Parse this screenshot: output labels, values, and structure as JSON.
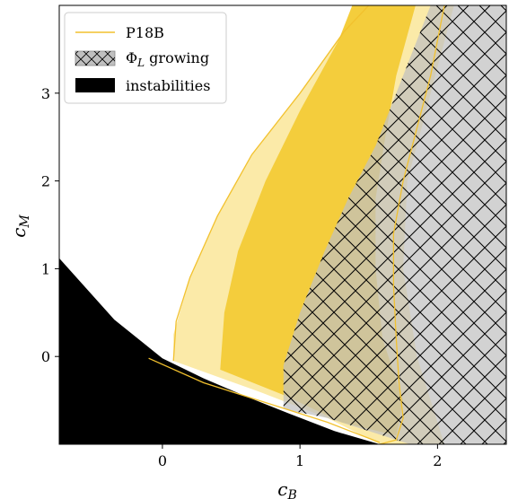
{
  "chart_data": {
    "type": "area",
    "title": "",
    "xlabel": "c_B",
    "ylabel": "c_M",
    "xlabel_main": "c",
    "xlabel_sub": "B",
    "ylabel_main": "c",
    "ylabel_sub": "M",
    "xlim": [
      -0.75,
      2.5
    ],
    "ylim": [
      -1.0,
      4.0
    ],
    "xticks": [
      0,
      1,
      2
    ],
    "yticks": [
      0,
      1,
      2,
      3
    ],
    "grid": false,
    "legend_position": "top-left",
    "legend": [
      {
        "key": "p18b",
        "label": "P18B",
        "style": "line",
        "color": "#f2c12e"
      },
      {
        "key": "phi",
        "label_main": "Φ",
        "label_sub": "L",
        "label_rest": " growing",
        "style": "hatched",
        "color": "#c0c0c0"
      },
      {
        "key": "inst",
        "label": "instabilities",
        "style": "filled",
        "color": "#000000"
      }
    ],
    "colors": {
      "outer_band": "#fbeaa8",
      "inner_band": "#f4cd3c",
      "p18b_line": "#f2c12e",
      "hatch_fill": "#c0c0c0",
      "instabilities": "#000000"
    },
    "regions": {
      "instabilities": [
        [
          -0.75,
          1.12
        ],
        [
          -0.75,
          -1.0
        ],
        [
          1.58,
          -1.0
        ],
        [
          1.25,
          -0.85
        ],
        [
          0.92,
          -0.65
        ],
        [
          0.6,
          -0.45
        ],
        [
          0.3,
          -0.25
        ],
        [
          0.0,
          -0.02
        ],
        [
          -0.35,
          0.42
        ],
        [
          -0.75,
          1.12
        ]
      ],
      "outer_band": [
        [
          0.08,
          -0.05
        ],
        [
          0.08,
          0.25
        ],
        [
          0.2,
          0.9
        ],
        [
          0.4,
          1.6
        ],
        [
          0.65,
          2.3
        ],
        [
          1.0,
          3.0
        ],
        [
          1.32,
          3.7
        ],
        [
          1.5,
          4.0
        ],
        [
          2.12,
          4.0
        ],
        [
          2.0,
          3.3
        ],
        [
          1.9,
          2.7
        ],
        [
          1.78,
          2.0
        ],
        [
          1.75,
          1.0
        ],
        [
          1.85,
          0.0
        ],
        [
          2.05,
          -1.0
        ],
        [
          1.58,
          -1.0
        ],
        [
          1.2,
          -0.7
        ],
        [
          0.7,
          -0.4
        ],
        [
          0.08,
          -0.05
        ]
      ],
      "inner_band": [
        [
          0.42,
          -0.15
        ],
        [
          0.45,
          0.5
        ],
        [
          0.55,
          1.2
        ],
        [
          0.75,
          2.0
        ],
        [
          1.0,
          2.8
        ],
        [
          1.28,
          3.6
        ],
        [
          1.38,
          4.0
        ],
        [
          1.84,
          4.0
        ],
        [
          1.7,
          3.2
        ],
        [
          1.62,
          2.5
        ],
        [
          1.55,
          1.8
        ],
        [
          1.55,
          1.0
        ],
        [
          1.6,
          0.2
        ],
        [
          1.75,
          -0.5
        ],
        [
          1.7,
          -0.9
        ],
        [
          1.3,
          -0.75
        ],
        [
          0.9,
          -0.45
        ],
        [
          0.42,
          -0.15
        ]
      ],
      "hatched": [
        [
          0.88,
          -0.6
        ],
        [
          0.88,
          -0.1
        ],
        [
          1.0,
          0.5
        ],
        [
          1.18,
          1.2
        ],
        [
          1.35,
          1.8
        ],
        [
          1.55,
          2.4
        ],
        [
          1.75,
          3.2
        ],
        [
          1.95,
          4.0
        ],
        [
          2.5,
          4.0
        ],
        [
          2.5,
          -1.0
        ],
        [
          1.8,
          -1.0
        ],
        [
          1.5,
          -0.85
        ],
        [
          1.2,
          -0.7
        ],
        [
          0.88,
          -0.6
        ]
      ]
    },
    "p18b_contours": [
      [
        [
          -0.1,
          -0.02
        ],
        [
          0.3,
          -0.3
        ],
        [
          0.8,
          -0.55
        ],
        [
          1.2,
          -0.75
        ],
        [
          1.58,
          -0.98
        ]
      ],
      [
        [
          1.58,
          -1.0
        ],
        [
          1.7,
          -0.95
        ],
        [
          1.75,
          -0.7
        ],
        [
          1.72,
          -0.3
        ],
        [
          1.7,
          0.2
        ],
        [
          1.68,
          0.8
        ],
        [
          1.68,
          1.4
        ],
        [
          1.75,
          2.0
        ],
        [
          1.85,
          2.6
        ],
        [
          1.95,
          3.2
        ],
        [
          2.05,
          4.0
        ]
      ],
      [
        [
          0.08,
          -0.05
        ],
        [
          0.1,
          0.4
        ],
        [
          0.2,
          0.9
        ],
        [
          0.4,
          1.6
        ],
        [
          0.65,
          2.3
        ],
        [
          1.0,
          3.0
        ],
        [
          1.32,
          3.7
        ],
        [
          1.5,
          4.0
        ]
      ]
    ]
  }
}
